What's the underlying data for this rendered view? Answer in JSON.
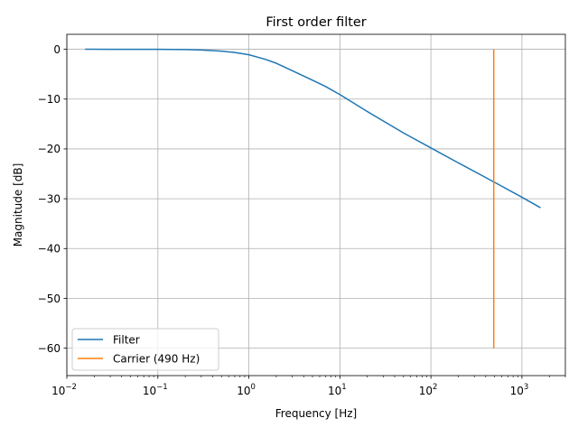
{
  "chart_data": {
    "type": "line",
    "title": "First order filter",
    "xlabel": "Frequency [Hz]",
    "ylabel": "Magnitude [dB]",
    "x_scale": "log",
    "xlim": [
      0.01,
      3000
    ],
    "ylim": [
      -65.5,
      3
    ],
    "grid": true,
    "legend_position": "lower-left",
    "x_ticks": [
      {
        "value": 0.01,
        "base": "10",
        "exp": "−2"
      },
      {
        "value": 0.1,
        "base": "10",
        "exp": "−1"
      },
      {
        "value": 1,
        "base": "10",
        "exp": "0"
      },
      {
        "value": 10,
        "base": "10",
        "exp": "1"
      },
      {
        "value": 100,
        "base": "10",
        "exp": "2"
      },
      {
        "value": 1000,
        "base": "10",
        "exp": "3"
      }
    ],
    "y_ticks": [
      {
        "value": 0,
        "label": "0"
      },
      {
        "value": -10,
        "label": "−10"
      },
      {
        "value": -20,
        "label": "−20"
      },
      {
        "value": -30,
        "label": "−30"
      },
      {
        "value": -40,
        "label": "−40"
      },
      {
        "value": -50,
        "label": "−50"
      },
      {
        "value": -60,
        "label": "−60"
      }
    ],
    "series": [
      {
        "name": "Filter",
        "color": "#1f77b4",
        "x": [
          0.0159,
          0.03,
          0.05,
          0.1,
          0.2,
          0.3,
          0.5,
          0.7,
          1,
          1.5,
          2,
          3,
          5,
          7,
          10,
          20,
          50,
          100,
          200,
          500,
          1000,
          1600
        ],
        "y": [
          0,
          -0.002,
          -0.004,
          -0.017,
          -0.067,
          -0.15,
          -0.38,
          -0.65,
          -1.1,
          -2.0,
          -2.8,
          -4.3,
          -6.2,
          -7.5,
          -9.1,
          -12.5,
          -16.8,
          -19.8,
          -22.8,
          -26.7,
          -29.7,
          -31.8
        ]
      },
      {
        "name": "Carrier (490 Hz)",
        "color": "#ff7f0e",
        "x": [
          490,
          490
        ],
        "y": [
          0,
          -60
        ]
      }
    ]
  }
}
